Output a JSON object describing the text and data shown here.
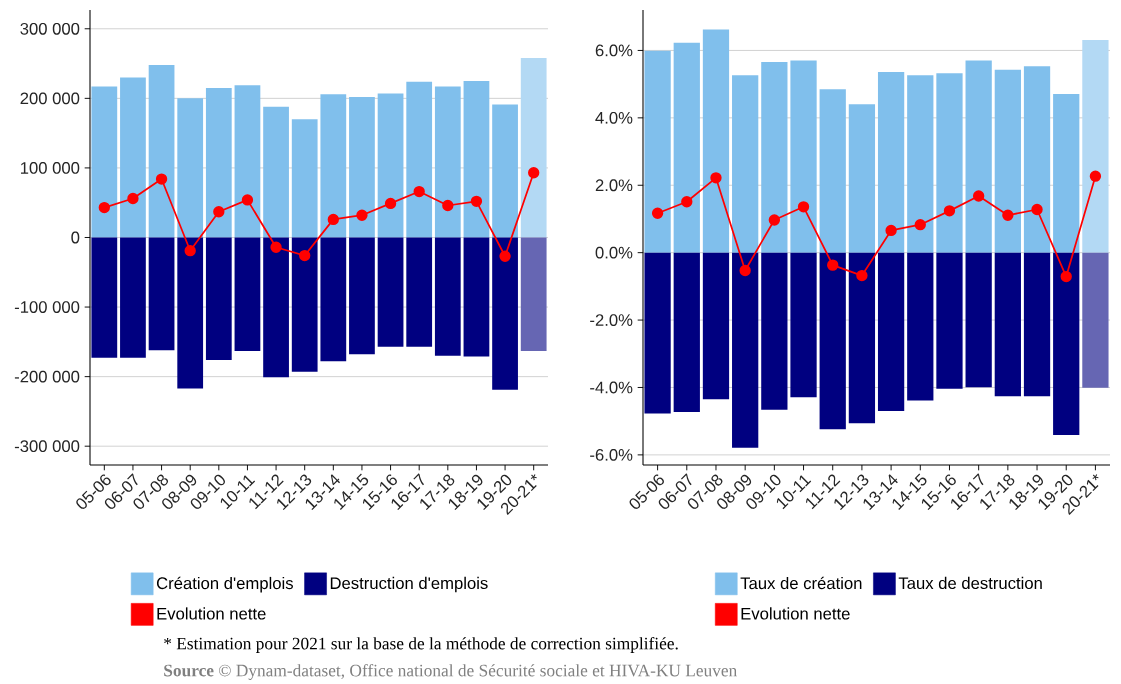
{
  "chart_data": [
    {
      "type": "bar",
      "stacked": true,
      "categories": [
        "05-06",
        "06-07",
        "07-08",
        "08-09",
        "09-10",
        "10-11",
        "11-12",
        "12-13",
        "13-14",
        "14-15",
        "15-16",
        "16-17",
        "17-18",
        "18-19",
        "19-20",
        "20-21*"
      ],
      "series": [
        {
          "name": "Création d'emplois",
          "color": "#80bfec",
          "colors": [
            "#80bfec",
            "#80bfec",
            "#80bfec",
            "#80bfec",
            "#80bfec",
            "#80bfec",
            "#80bfec",
            "#80bfec",
            "#80bfec",
            "#80bfec",
            "#80bfec",
            "#80bfec",
            "#80bfec",
            "#80bfec",
            "#80bfec",
            "#b3d9f4"
          ],
          "values": [
            217000,
            230000,
            248000,
            200000,
            215000,
            219000,
            188000,
            170000,
            206000,
            202000,
            207000,
            224000,
            217000,
            225000,
            191000,
            258000
          ]
        },
        {
          "name": "Destruction d'emplois",
          "color": "#000080",
          "colors": [
            "#000080",
            "#000080",
            "#000080",
            "#000080",
            "#000080",
            "#000080",
            "#000080",
            "#000080",
            "#000080",
            "#000080",
            "#000080",
            "#000080",
            "#000080",
            "#000080",
            "#000080",
            "#6666b3"
          ],
          "values": [
            -173000,
            -173000,
            -162000,
            -217000,
            -176000,
            -163000,
            -201000,
            -193000,
            -178000,
            -168000,
            -157000,
            -157000,
            -170000,
            -171000,
            -219000,
            -163000
          ]
        },
        {
          "name": "Evolution nette",
          "type": "line",
          "color": "#ff0000",
          "marker": "circle",
          "values": [
            43000,
            56000,
            84000,
            -19000,
            37000,
            54000,
            -14000,
            -26000,
            26000,
            32000,
            49000,
            66000,
            46000,
            52000,
            -27000,
            93000
          ]
        }
      ],
      "ylim": [
        -327000,
        327000
      ],
      "yticks": [
        {
          "value": -300000,
          "label": "-300 000"
        },
        {
          "value": -200000,
          "label": "-200 000"
        },
        {
          "value": -100000,
          "label": "-100 000"
        },
        0,
        {
          "value": 100000,
          "label": "100 000"
        },
        {
          "value": 200000,
          "label": "200 000"
        },
        {
          "value": 300000,
          "label": "300 000"
        }
      ],
      "grid": "y",
      "legend": "bottom",
      "annotations": [
        "*  Estimation pour 2021 sur la base de la méthode de correction simplifiée.",
        "**Source** © Dynam-dataset, Office national de Sécurité sociale et HIVA-KU Leuven"
      ]
    },
    {
      "type": "bar",
      "stacked": true,
      "categories": [
        "05-06",
        "06-07",
        "07-08",
        "08-09",
        "09-10",
        "10-11",
        "11-12",
        "12-13",
        "13-14",
        "14-15",
        "15-16",
        "16-17",
        "17-18",
        "18-19",
        "19-20",
        "20-21*"
      ],
      "series": [
        {
          "name": "Taux de création",
          "color": "#80bfec",
          "colors": [
            "#80bfec",
            "#80bfec",
            "#80bfec",
            "#80bfec",
            "#80bfec",
            "#80bfec",
            "#80bfec",
            "#80bfec",
            "#80bfec",
            "#80bfec",
            "#80bfec",
            "#80bfec",
            "#80bfec",
            "#80bfec",
            "#80bfec",
            "#b3d9f4"
          ],
          "values": [
            5.99,
            6.23,
            6.62,
            5.26,
            5.66,
            5.7,
            4.85,
            4.4,
            5.36,
            5.26,
            5.32,
            5.7,
            5.43,
            5.53,
            4.71,
            6.31
          ]
        },
        {
          "name": "Taux de destruction",
          "color": "#000080",
          "colors": [
            "#000080",
            "#000080",
            "#000080",
            "#000080",
            "#000080",
            "#000080",
            "#000080",
            "#000080",
            "#000080",
            "#000080",
            "#000080",
            "#000080",
            "#000080",
            "#000080",
            "#000080",
            "#6666b3"
          ],
          "values": [
            -4.77,
            -4.73,
            -4.35,
            -5.79,
            -4.66,
            -4.29,
            -5.24,
            -5.06,
            -4.7,
            -4.39,
            -4.04,
            -3.99,
            -4.26,
            -4.26,
            -5.41,
            -4.01
          ]
        },
        {
          "name": "Evolution nette",
          "type": "line",
          "color": "#ff0000",
          "marker": "circle",
          "values": [
            1.17,
            1.51,
            2.22,
            -0.53,
            0.97,
            1.36,
            -0.37,
            -0.68,
            0.66,
            0.83,
            1.24,
            1.68,
            1.11,
            1.28,
            -0.71,
            2.27
          ]
        }
      ],
      "ylim": [
        -6.3,
        7.2
      ],
      "yticks": [
        {
          "value": -6,
          "label": "-6.0%"
        },
        {
          "value": -4,
          "label": "-4.0%"
        },
        {
          "value": -2,
          "label": "-2.0%"
        },
        {
          "value": 0,
          "label": "0.0%"
        },
        {
          "value": 2,
          "label": "2.0%"
        },
        {
          "value": 4,
          "label": "4.0%"
        },
        {
          "value": 6,
          "label": "6.0%"
        }
      ],
      "grid": "y",
      "legend": "bottom"
    }
  ]
}
